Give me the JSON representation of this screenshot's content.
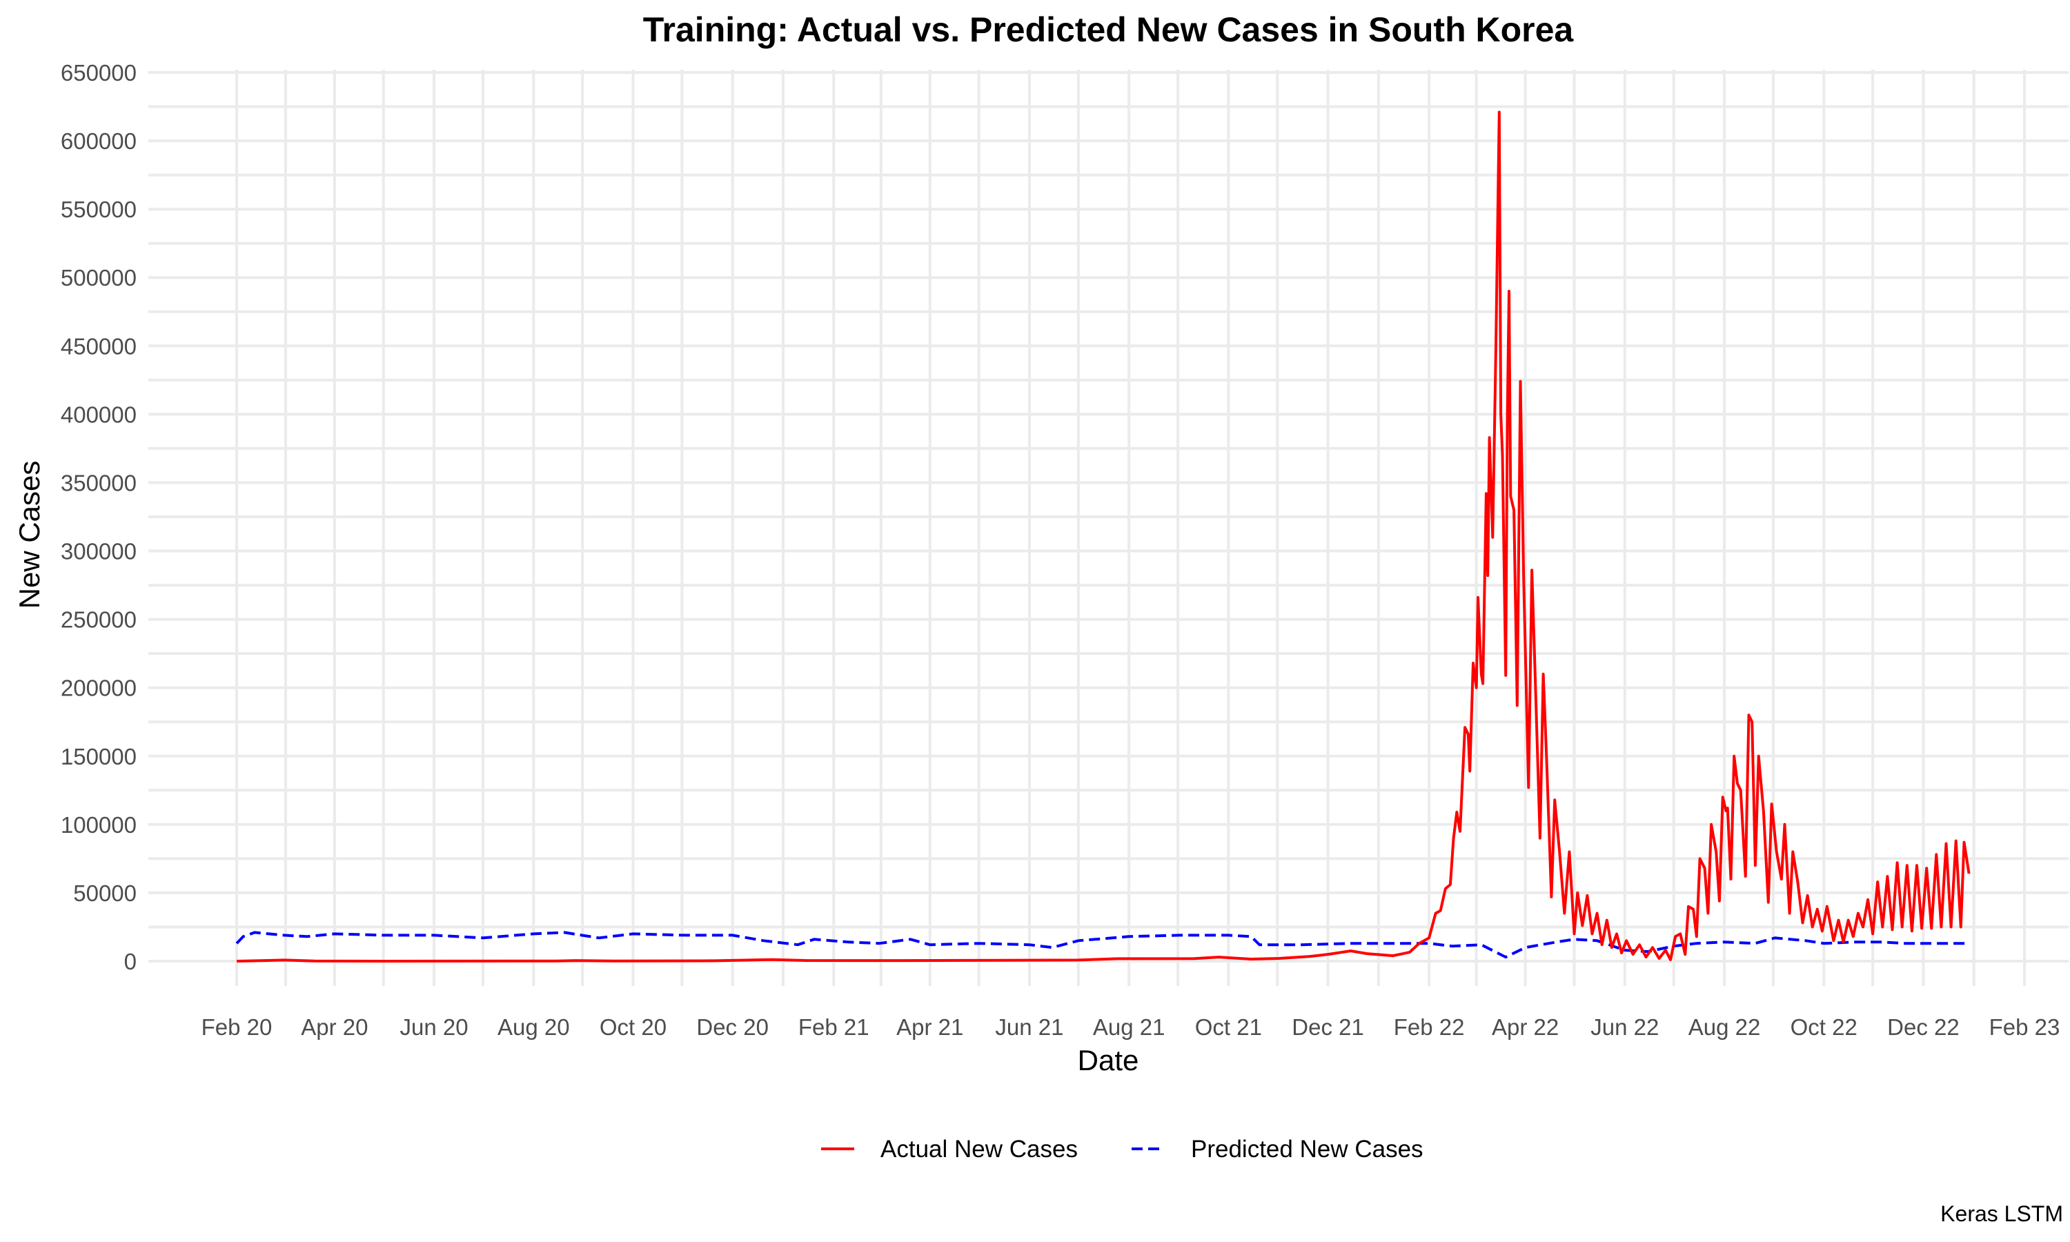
{
  "chart_data": {
    "type": "line",
    "title": "Training: Actual vs. Predicted New Cases in South Korea",
    "xlabel": "Date",
    "ylabel": "New Cases",
    "caption": "Keras LSTM",
    "x_type": "date",
    "xlim": [
      "2020-02-01",
      "2023-02-01"
    ],
    "ylim": [
      0,
      650000
    ],
    "y_ticks": [
      0,
      50000,
      100000,
      150000,
      200000,
      250000,
      300000,
      350000,
      400000,
      450000,
      500000,
      550000,
      600000,
      650000
    ],
    "y_tick_labels": [
      "0",
      "50000",
      "100000",
      "150000",
      "200000",
      "250000",
      "300000",
      "350000",
      "400000",
      "450000",
      "500000",
      "550000",
      "600000",
      "650000"
    ],
    "x_ticks": [
      "2020-02-01",
      "2020-04-01",
      "2020-06-01",
      "2020-08-01",
      "2020-10-01",
      "2020-12-01",
      "2021-02-01",
      "2021-04-01",
      "2021-06-01",
      "2021-08-01",
      "2021-10-01",
      "2021-12-01",
      "2022-02-01",
      "2022-04-01",
      "2022-06-01",
      "2022-08-01",
      "2022-10-01",
      "2022-12-01",
      "2023-02-01"
    ],
    "x_tick_labels": [
      "Feb 20",
      "Apr 20",
      "Jun 20",
      "Aug 20",
      "Oct 20",
      "Dec 20",
      "Feb 21",
      "Apr 21",
      "Jun 21",
      "Aug 21",
      "Oct 21",
      "Dec 21",
      "Feb 22",
      "Apr 22",
      "Jun 22",
      "Aug 22",
      "Oct 22",
      "Dec 22",
      "Feb 23"
    ],
    "grid": true,
    "legend_position": "bottom",
    "series": [
      {
        "name": "Actual New Cases",
        "color": "#ff0000",
        "dash": "solid",
        "points": [
          [
            "2020-02-01",
            0
          ],
          [
            "2020-02-20",
            500
          ],
          [
            "2020-03-01",
            800
          ],
          [
            "2020-03-20",
            150
          ],
          [
            "2020-05-01",
            20
          ],
          [
            "2020-08-15",
            150
          ],
          [
            "2020-08-27",
            440
          ],
          [
            "2020-09-20",
            100
          ],
          [
            "2020-11-20",
            300
          ],
          [
            "2020-12-25",
            1100
          ],
          [
            "2021-01-15",
            500
          ],
          [
            "2021-03-15",
            450
          ],
          [
            "2021-05-15",
            600
          ],
          [
            "2021-07-01",
            800
          ],
          [
            "2021-07-25",
            1800
          ],
          [
            "2021-09-10",
            1900
          ],
          [
            "2021-09-25",
            3000
          ],
          [
            "2021-10-15",
            1500
          ],
          [
            "2021-11-01",
            2000
          ],
          [
            "2021-11-20",
            3500
          ],
          [
            "2021-12-01",
            5000
          ],
          [
            "2021-12-15",
            7500
          ],
          [
            "2021-12-25",
            5500
          ],
          [
            "2022-01-10",
            4000
          ],
          [
            "2022-01-20",
            6500
          ],
          [
            "2022-01-26",
            13000
          ],
          [
            "2022-02-01",
            17000
          ],
          [
            "2022-02-05",
            35000
          ],
          [
            "2022-02-08",
            37000
          ],
          [
            "2022-02-11",
            53000
          ],
          [
            "2022-02-14",
            56000
          ],
          [
            "2022-02-16",
            90000
          ],
          [
            "2022-02-18",
            109000
          ],
          [
            "2022-02-20",
            95000
          ],
          [
            "2022-02-23",
            171000
          ],
          [
            "2022-02-25",
            166000
          ],
          [
            "2022-02-26",
            139000
          ],
          [
            "2022-02-28",
            218000
          ],
          [
            "2022-03-02",
            200000
          ],
          [
            "2022-03-03",
            266000
          ],
          [
            "2022-03-05",
            210000
          ],
          [
            "2022-03-06",
            203000
          ],
          [
            "2022-03-08",
            342000
          ],
          [
            "2022-03-09",
            282000
          ],
          [
            "2022-03-10",
            383000
          ],
          [
            "2022-03-12",
            310000
          ],
          [
            "2022-03-14",
            450000
          ],
          [
            "2022-03-16",
            621000
          ],
          [
            "2022-03-17",
            400000
          ],
          [
            "2022-03-18",
            370000
          ],
          [
            "2022-03-20",
            209000
          ],
          [
            "2022-03-21",
            400000
          ],
          [
            "2022-03-22",
            490000
          ],
          [
            "2022-03-23",
            340000
          ],
          [
            "2022-03-25",
            330000
          ],
          [
            "2022-03-27",
            187000
          ],
          [
            "2022-03-29",
            424000
          ],
          [
            "2022-03-31",
            280000
          ],
          [
            "2022-04-03",
            127000
          ],
          [
            "2022-04-05",
            286000
          ],
          [
            "2022-04-07",
            210000
          ],
          [
            "2022-04-10",
            90000
          ],
          [
            "2022-04-12",
            210000
          ],
          [
            "2022-04-14",
            150000
          ],
          [
            "2022-04-17",
            47000
          ],
          [
            "2022-04-19",
            118000
          ],
          [
            "2022-04-22",
            80000
          ],
          [
            "2022-04-25",
            35000
          ],
          [
            "2022-04-28",
            80000
          ],
          [
            "2022-05-01",
            20000
          ],
          [
            "2022-05-03",
            50000
          ],
          [
            "2022-05-06",
            26000
          ],
          [
            "2022-05-09",
            48000
          ],
          [
            "2022-05-12",
            20000
          ],
          [
            "2022-05-15",
            35000
          ],
          [
            "2022-05-18",
            12000
          ],
          [
            "2022-05-21",
            30000
          ],
          [
            "2022-05-24",
            10000
          ],
          [
            "2022-05-27",
            20000
          ],
          [
            "2022-05-30",
            6000
          ],
          [
            "2022-06-02",
            15000
          ],
          [
            "2022-06-06",
            5000
          ],
          [
            "2022-06-10",
            12000
          ],
          [
            "2022-06-14",
            3000
          ],
          [
            "2022-06-18",
            10000
          ],
          [
            "2022-06-22",
            2000
          ],
          [
            "2022-06-26",
            8000
          ],
          [
            "2022-06-29",
            1000
          ],
          [
            "2022-07-02",
            18000
          ],
          [
            "2022-07-05",
            20000
          ],
          [
            "2022-07-08",
            5000
          ],
          [
            "2022-07-10",
            40000
          ],
          [
            "2022-07-13",
            38000
          ],
          [
            "2022-07-15",
            18000
          ],
          [
            "2022-07-17",
            75000
          ],
          [
            "2022-07-20",
            68000
          ],
          [
            "2022-07-22",
            35000
          ],
          [
            "2022-07-24",
            100000
          ],
          [
            "2022-07-27",
            80000
          ],
          [
            "2022-07-29",
            44000
          ],
          [
            "2022-07-31",
            120000
          ],
          [
            "2022-08-02",
            110000
          ],
          [
            "2022-08-03",
            112000
          ],
          [
            "2022-08-05",
            60000
          ],
          [
            "2022-08-07",
            150000
          ],
          [
            "2022-08-09",
            130000
          ],
          [
            "2022-08-11",
            125000
          ],
          [
            "2022-08-14",
            62000
          ],
          [
            "2022-08-16",
            180000
          ],
          [
            "2022-08-18",
            175000
          ],
          [
            "2022-08-20",
            70000
          ],
          [
            "2022-08-22",
            150000
          ],
          [
            "2022-08-25",
            110000
          ],
          [
            "2022-08-28",
            43000
          ],
          [
            "2022-08-30",
            115000
          ],
          [
            "2022-09-02",
            80000
          ],
          [
            "2022-09-05",
            60000
          ],
          [
            "2022-09-07",
            100000
          ],
          [
            "2022-09-10",
            35000
          ],
          [
            "2022-09-12",
            80000
          ],
          [
            "2022-09-15",
            58000
          ],
          [
            "2022-09-18",
            28000
          ],
          [
            "2022-09-21",
            48000
          ],
          [
            "2022-09-24",
            25000
          ],
          [
            "2022-09-27",
            38000
          ],
          [
            "2022-09-30",
            22000
          ],
          [
            "2022-10-03",
            40000
          ],
          [
            "2022-10-07",
            15000
          ],
          [
            "2022-10-10",
            30000
          ],
          [
            "2022-10-13",
            14000
          ],
          [
            "2022-10-16",
            30000
          ],
          [
            "2022-10-19",
            18000
          ],
          [
            "2022-10-22",
            35000
          ],
          [
            "2022-10-25",
            25000
          ],
          [
            "2022-10-28",
            45000
          ],
          [
            "2022-10-31",
            20000
          ],
          [
            "2022-11-03",
            58000
          ],
          [
            "2022-11-06",
            25000
          ],
          [
            "2022-11-09",
            62000
          ],
          [
            "2022-11-12",
            23000
          ],
          [
            "2022-11-15",
            72000
          ],
          [
            "2022-11-18",
            25000
          ],
          [
            "2022-11-21",
            70000
          ],
          [
            "2022-11-24",
            22000
          ],
          [
            "2022-11-27",
            70000
          ],
          [
            "2022-11-30",
            24000
          ],
          [
            "2022-12-03",
            68000
          ],
          [
            "2022-12-06",
            24000
          ],
          [
            "2022-12-09",
            78000
          ],
          [
            "2022-12-12",
            25000
          ],
          [
            "2022-12-15",
            86000
          ],
          [
            "2022-12-18",
            25000
          ],
          [
            "2022-12-21",
            88000
          ],
          [
            "2022-12-24",
            25000
          ],
          [
            "2022-12-26",
            87000
          ],
          [
            "2022-12-29",
            64000
          ]
        ]
      },
      {
        "name": "Predicted New Cases",
        "color": "#0000ff",
        "dash": "dashed",
        "points": [
          [
            "2020-02-01",
            13000
          ],
          [
            "2020-02-05",
            18000
          ],
          [
            "2020-02-12",
            21000
          ],
          [
            "2020-03-01",
            19000
          ],
          [
            "2020-03-15",
            18000
          ],
          [
            "2020-04-01",
            20000
          ],
          [
            "2020-05-01",
            19000
          ],
          [
            "2020-06-01",
            19000
          ],
          [
            "2020-07-01",
            17000
          ],
          [
            "2020-08-01",
            20000
          ],
          [
            "2020-08-20",
            21000
          ],
          [
            "2020-09-10",
            17000
          ],
          [
            "2020-10-01",
            20000
          ],
          [
            "2020-11-01",
            19000
          ],
          [
            "2020-12-01",
            19000
          ],
          [
            "2020-12-20",
            15000
          ],
          [
            "2021-01-10",
            12000
          ],
          [
            "2021-01-20",
            16000
          ],
          [
            "2021-02-10",
            14000
          ],
          [
            "2021-03-01",
            13000
          ],
          [
            "2021-03-20",
            16000
          ],
          [
            "2021-04-01",
            12000
          ],
          [
            "2021-05-01",
            13000
          ],
          [
            "2021-06-01",
            12000
          ],
          [
            "2021-06-15",
            10000
          ],
          [
            "2021-07-01",
            15000
          ],
          [
            "2021-08-01",
            18000
          ],
          [
            "2021-09-01",
            19000
          ],
          [
            "2021-10-01",
            19000
          ],
          [
            "2021-10-15",
            18000
          ],
          [
            "2021-10-20",
            12000
          ],
          [
            "2021-11-15",
            12000
          ],
          [
            "2021-12-15",
            13000
          ],
          [
            "2022-01-15",
            13000
          ],
          [
            "2022-02-01",
            13000
          ],
          [
            "2022-02-15",
            11000
          ],
          [
            "2022-03-05",
            12000
          ],
          [
            "2022-03-20",
            3000
          ],
          [
            "2022-04-01",
            10000
          ],
          [
            "2022-04-20",
            14000
          ],
          [
            "2022-05-01",
            16000
          ],
          [
            "2022-05-15",
            15000
          ],
          [
            "2022-06-01",
            8000
          ],
          [
            "2022-06-15",
            7000
          ],
          [
            "2022-07-01",
            11000
          ],
          [
            "2022-07-15",
            13000
          ],
          [
            "2022-08-01",
            14000
          ],
          [
            "2022-08-20",
            13000
          ],
          [
            "2022-09-01",
            17000
          ],
          [
            "2022-09-20",
            15000
          ],
          [
            "2022-10-01",
            13000
          ],
          [
            "2022-10-20",
            14000
          ],
          [
            "2022-11-05",
            14000
          ],
          [
            "2022-11-20",
            13000
          ],
          [
            "2022-12-10",
            13000
          ],
          [
            "2022-12-29",
            13000
          ]
        ]
      }
    ]
  }
}
